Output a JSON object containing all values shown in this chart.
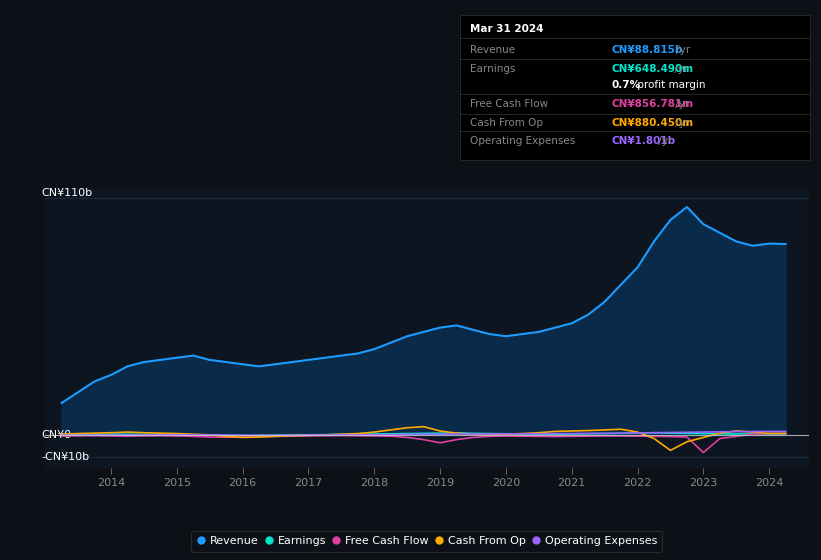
{
  "bg_color": "#0d1117",
  "plot_bg_color": "#0d1520",
  "grid_color": "#1e2d3d",
  "y_label_top": "CN¥110b",
  "y_label_zero": "CN¥0",
  "y_label_neg": "-CN¥10b",
  "ylim": [
    -15,
    115
  ],
  "xlim": [
    2013.0,
    2024.6
  ],
  "tooltip": {
    "date": "Mar 31 2024",
    "revenue_label": "Revenue",
    "revenue_value": "CN¥88.815b",
    "revenue_color": "#1e9bff",
    "earnings_label": "Earnings",
    "earnings_value": "CN¥648.490m",
    "earnings_color": "#00e5cc",
    "profit_margin_bold": "0.7%",
    "profit_margin_rest": " profit margin",
    "fcf_label": "Free Cash Flow",
    "fcf_value": "CN¥856.781m",
    "fcf_color": "#e040a0",
    "cashop_label": "Cash From Op",
    "cashop_value": "CN¥880.450m",
    "cashop_color": "#ffaa00",
    "opex_label": "Operating Expenses",
    "opex_value": "CN¥1.801b",
    "opex_color": "#9966ff"
  },
  "legend": [
    {
      "label": "Revenue",
      "color": "#1e9bff"
    },
    {
      "label": "Earnings",
      "color": "#00e5cc"
    },
    {
      "label": "Free Cash Flow",
      "color": "#e040a0"
    },
    {
      "label": "Cash From Op",
      "color": "#ffaa00"
    },
    {
      "label": "Operating Expenses",
      "color": "#9966ff"
    }
  ],
  "revenue_x": [
    2013.25,
    2013.5,
    2013.75,
    2014.0,
    2014.25,
    2014.5,
    2014.75,
    2015.0,
    2015.25,
    2015.5,
    2015.75,
    2016.0,
    2016.25,
    2016.5,
    2016.75,
    2017.0,
    2017.25,
    2017.5,
    2017.75,
    2018.0,
    2018.25,
    2018.5,
    2018.75,
    2019.0,
    2019.25,
    2019.5,
    2019.75,
    2020.0,
    2020.25,
    2020.5,
    2020.75,
    2021.0,
    2021.25,
    2021.5,
    2021.75,
    2022.0,
    2022.25,
    2022.5,
    2022.75,
    2023.0,
    2023.25,
    2023.5,
    2023.75,
    2024.0,
    2024.25
  ],
  "revenue_y": [
    15,
    20,
    25,
    28,
    32,
    34,
    35,
    36,
    37,
    35,
    34,
    33,
    32,
    33,
    34,
    35,
    36,
    37,
    38,
    40,
    43,
    46,
    48,
    50,
    51,
    49,
    47,
    46,
    47,
    48,
    50,
    52,
    56,
    62,
    70,
    78,
    90,
    100,
    106,
    98,
    94,
    90,
    88,
    89,
    88.8
  ],
  "revenue_color": "#1e9bff",
  "revenue_fill": "#0a2a4a",
  "earnings_x": [
    2013.25,
    2013.5,
    2013.75,
    2014.0,
    2014.25,
    2014.5,
    2014.75,
    2015.0,
    2015.25,
    2015.5,
    2015.75,
    2016.0,
    2016.25,
    2016.5,
    2016.75,
    2017.0,
    2017.25,
    2017.5,
    2017.75,
    2018.0,
    2018.25,
    2018.5,
    2018.75,
    2019.0,
    2019.25,
    2019.5,
    2019.75,
    2020.0,
    2020.25,
    2020.5,
    2020.75,
    2021.0,
    2021.25,
    2021.5,
    2021.75,
    2022.0,
    2022.25,
    2022.5,
    2022.75,
    2023.0,
    2023.25,
    2023.5,
    2023.75,
    2024.0,
    2024.25
  ],
  "earnings_y": [
    0.2,
    0.3,
    0.4,
    0.5,
    0.5,
    0.4,
    0.4,
    0.3,
    0.2,
    0.1,
    -0.1,
    -0.2,
    -0.1,
    0.0,
    0.1,
    0.2,
    0.3,
    0.4,
    0.5,
    0.6,
    0.7,
    0.8,
    0.9,
    1.0,
    1.1,
    0.9,
    0.8,
    0.7,
    0.6,
    0.5,
    0.5,
    0.6,
    0.7,
    0.8,
    0.9,
    1.0,
    1.2,
    1.0,
    0.9,
    0.8,
    0.7,
    0.6,
    0.65,
    0.65,
    0.65
  ],
  "earnings_color": "#00e5cc",
  "fcf_x": [
    2013.25,
    2013.5,
    2013.75,
    2014.0,
    2014.25,
    2014.5,
    2014.75,
    2015.0,
    2015.25,
    2015.5,
    2015.75,
    2016.0,
    2016.25,
    2016.5,
    2016.75,
    2017.0,
    2017.25,
    2017.5,
    2017.75,
    2018.0,
    2018.25,
    2018.5,
    2018.75,
    2019.0,
    2019.25,
    2019.5,
    2019.75,
    2020.0,
    2020.25,
    2020.5,
    2020.75,
    2021.0,
    2021.25,
    2021.5,
    2021.75,
    2022.0,
    2022.25,
    2022.5,
    2022.75,
    2023.0,
    2023.25,
    2023.5,
    2023.75,
    2024.0,
    2024.25
  ],
  "fcf_y": [
    -0.3,
    -0.2,
    -0.2,
    -0.3,
    -0.4,
    -0.3,
    -0.2,
    -0.3,
    -0.5,
    -0.8,
    -0.9,
    -0.8,
    -0.6,
    -0.5,
    -0.4,
    -0.3,
    -0.2,
    -0.1,
    -0.2,
    -0.3,
    -0.4,
    -1.0,
    -2.0,
    -3.5,
    -2.0,
    -1.0,
    -0.5,
    -0.3,
    -0.4,
    -0.5,
    -0.6,
    -0.5,
    -0.4,
    -0.3,
    -0.3,
    -0.4,
    -0.5,
    -0.6,
    -0.8,
    -8.0,
    -1.5,
    -0.5,
    0.5,
    0.8,
    0.86
  ],
  "fcf_color": "#e040a0",
  "cashop_x": [
    2013.25,
    2013.5,
    2013.75,
    2014.0,
    2014.25,
    2014.5,
    2014.75,
    2015.0,
    2015.25,
    2015.5,
    2015.75,
    2016.0,
    2016.25,
    2016.5,
    2016.75,
    2017.0,
    2017.25,
    2017.5,
    2017.75,
    2018.0,
    2018.25,
    2018.5,
    2018.75,
    2019.0,
    2019.25,
    2019.5,
    2019.75,
    2020.0,
    2020.25,
    2020.5,
    2020.75,
    2021.0,
    2021.25,
    2021.5,
    2021.75,
    2022.0,
    2022.25,
    2022.5,
    2022.75,
    2023.0,
    2023.25,
    2023.5,
    2023.75,
    2024.0,
    2024.25
  ],
  "cashop_y": [
    0.5,
    0.8,
    1.0,
    1.2,
    1.5,
    1.2,
    1.0,
    0.8,
    0.5,
    0.2,
    -0.5,
    -1.0,
    -0.8,
    -0.5,
    -0.2,
    0.0,
    0.2,
    0.5,
    0.8,
    1.5,
    2.5,
    3.5,
    4.0,
    2.0,
    1.0,
    0.5,
    0.3,
    0.5,
    0.8,
    1.2,
    1.8,
    2.0,
    2.2,
    2.5,
    2.8,
    1.5,
    -1.5,
    -7.0,
    -3.0,
    -1.0,
    1.0,
    2.0,
    1.5,
    0.88,
    0.88
  ],
  "cashop_color": "#ffaa00",
  "opex_x": [
    2013.25,
    2013.5,
    2013.75,
    2014.0,
    2014.25,
    2014.5,
    2014.75,
    2015.0,
    2015.25,
    2015.5,
    2015.75,
    2016.0,
    2016.25,
    2016.5,
    2016.75,
    2017.0,
    2017.25,
    2017.5,
    2017.75,
    2018.0,
    2018.25,
    2018.5,
    2018.75,
    2019.0,
    2019.25,
    2019.5,
    2019.75,
    2020.0,
    2020.25,
    2020.5,
    2020.75,
    2021.0,
    2021.25,
    2021.5,
    2021.75,
    2022.0,
    2022.25,
    2022.5,
    2022.75,
    2023.0,
    2023.25,
    2023.5,
    2023.75,
    2024.0,
    2024.25
  ],
  "opex_y": [
    0.0,
    0.0,
    0.1,
    0.1,
    0.1,
    0.1,
    0.2,
    0.2,
    0.2,
    0.1,
    0.1,
    0.0,
    0.0,
    0.0,
    0.0,
    0.1,
    0.1,
    0.2,
    0.2,
    0.2,
    0.3,
    0.4,
    0.5,
    0.5,
    0.6,
    0.6,
    0.6,
    0.7,
    0.7,
    0.7,
    0.8,
    0.8,
    0.9,
    0.9,
    1.0,
    1.1,
    1.2,
    1.3,
    1.4,
    1.5,
    1.6,
    1.7,
    1.75,
    1.8,
    1.8
  ],
  "opex_color": "#9966ff"
}
